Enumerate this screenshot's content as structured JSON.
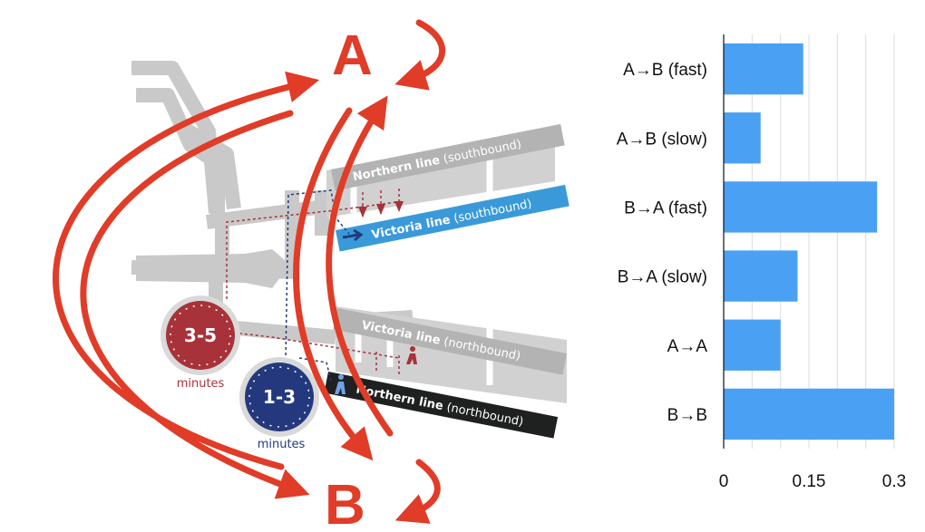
{
  "diagram": {
    "label_a": "A",
    "label_b": "B",
    "platforms": [
      {
        "name": "Northern line",
        "direction": "(southbound)",
        "color": "#b3b3b3"
      },
      {
        "name": "Victoria line",
        "direction": "(southbound)",
        "color": "#3a9ad9"
      },
      {
        "name": "Victoria line",
        "direction": "(northbound)",
        "color": "#b3b3b3"
      },
      {
        "name": "Northern line",
        "direction": "(northbound)",
        "color": "#1f2020"
      }
    ],
    "timers": [
      {
        "value": "3-5",
        "caption": "minutes",
        "color": "#a8323a"
      },
      {
        "value": "1-3",
        "caption": "minutes",
        "color": "#24397d"
      }
    ],
    "arrow_color": "#e03c28",
    "station_color": "#c9c9c9"
  },
  "chart_data": {
    "type": "bar",
    "orientation": "horizontal",
    "categories": [
      "A→B (fast)",
      "A→B (slow)",
      "B→A (fast)",
      "B→A (slow)",
      "A→A",
      "B→B"
    ],
    "values": [
      0.14,
      0.065,
      0.27,
      0.13,
      0.1,
      0.3
    ],
    "xlim": [
      0,
      0.3
    ],
    "xticks": [
      "0",
      "0.15",
      "0.3"
    ],
    "bar_color": "#4aa1f3",
    "grid": true
  }
}
